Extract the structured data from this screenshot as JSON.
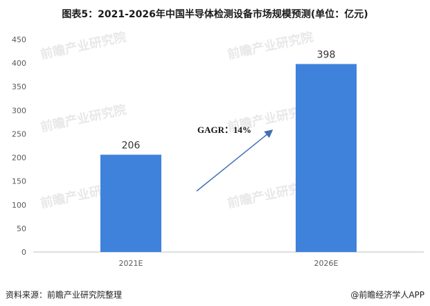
{
  "chart_data": {
    "type": "bar",
    "title": "图表5：2021-2026年中国半导体检测设备市场规模预测(单位：亿元)",
    "categories": [
      "2021E",
      "2026E"
    ],
    "values": [
      206,
      398
    ],
    "data_labels": [
      "206",
      "398"
    ],
    "ylim": [
      0,
      450
    ],
    "yticks": [
      0,
      50,
      100,
      150,
      200,
      250,
      300,
      350,
      400,
      450
    ],
    "bar_color": "#3f82dc",
    "grid": false,
    "annotation": "GAGR：14%"
  },
  "footer": {
    "source": "资料来源：前瞻产业研究院整理",
    "brand": "@前瞻经济学人APP"
  },
  "watermark": "前瞻产业研究院"
}
